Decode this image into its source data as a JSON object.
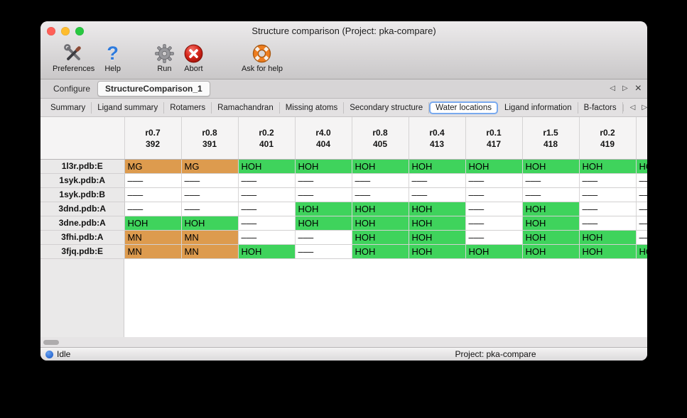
{
  "window": {
    "title": "Structure comparison (Project: pka-compare)"
  },
  "toolbar": {
    "items": [
      {
        "label": "Preferences",
        "icon": "tools-icon"
      },
      {
        "label": "Help",
        "icon": "question-icon",
        "glyph": "?"
      },
      {
        "label": "Run",
        "icon": "gear-icon"
      },
      {
        "label": "Abort",
        "icon": "abort-icon"
      },
      {
        "label": "Ask for help",
        "icon": "lifering-icon"
      }
    ]
  },
  "tabs": {
    "items": [
      {
        "label": "Configure",
        "active": false
      },
      {
        "label": "StructureComparison_1",
        "active": true
      }
    ],
    "nav": {
      "prev": "◁",
      "next": "▷",
      "close": "×"
    }
  },
  "subtabs": {
    "items": [
      "Summary",
      "Ligand summary",
      "Rotamers",
      "Ramachandran",
      "Missing atoms",
      "Secondary structure",
      "Water locations",
      "Ligand information",
      "B-factors"
    ],
    "selected": "Water locations",
    "nav": {
      "prev": "◁",
      "next": "▷"
    }
  },
  "table": {
    "columns": [
      {
        "line1": "r0.7",
        "line2": "392"
      },
      {
        "line1": "r0.8",
        "line2": "391"
      },
      {
        "line1": "r0.2",
        "line2": "401"
      },
      {
        "line1": "r4.0",
        "line2": "404"
      },
      {
        "line1": "r0.8",
        "line2": "405"
      },
      {
        "line1": "r0.4",
        "line2": "413"
      },
      {
        "line1": "r0.1",
        "line2": "417"
      },
      {
        "line1": "r1.5",
        "line2": "418"
      },
      {
        "line1": "r0.2",
        "line2": "419"
      }
    ],
    "rows": [
      {
        "label": "1l3r.pdb:E",
        "cells": [
          {
            "text": "MG",
            "type": "metal"
          },
          {
            "text": "MG",
            "type": "metal"
          },
          {
            "text": "HOH",
            "type": "water"
          },
          {
            "text": "HOH",
            "type": "water"
          },
          {
            "text": "HOH",
            "type": "water"
          },
          {
            "text": "HOH",
            "type": "water"
          },
          {
            "text": "HOH",
            "type": "water"
          },
          {
            "text": "HOH",
            "type": "water"
          },
          {
            "text": "HOH",
            "type": "water"
          }
        ],
        "partial": {
          "text": "HOH",
          "type": "water"
        }
      },
      {
        "label": "1syk.pdb:A",
        "cells": [
          {
            "text": "–––",
            "type": "none"
          },
          {
            "text": "–––",
            "type": "none"
          },
          {
            "text": "–––",
            "type": "none"
          },
          {
            "text": "–––",
            "type": "none"
          },
          {
            "text": "–––",
            "type": "none"
          },
          {
            "text": "–––",
            "type": "none"
          },
          {
            "text": "–––",
            "type": "none"
          },
          {
            "text": "–––",
            "type": "none"
          },
          {
            "text": "–––",
            "type": "none"
          }
        ],
        "partial": {
          "text": "–––",
          "type": "none"
        }
      },
      {
        "label": "1syk.pdb:B",
        "cells": [
          {
            "text": "–––",
            "type": "none"
          },
          {
            "text": "–––",
            "type": "none"
          },
          {
            "text": "–––",
            "type": "none"
          },
          {
            "text": "–––",
            "type": "none"
          },
          {
            "text": "–––",
            "type": "none"
          },
          {
            "text": "–––",
            "type": "none"
          },
          {
            "text": "–––",
            "type": "none"
          },
          {
            "text": "–––",
            "type": "none"
          },
          {
            "text": "–––",
            "type": "none"
          }
        ],
        "partial": {
          "text": "–––",
          "type": "none"
        }
      },
      {
        "label": "3dnd.pdb:A",
        "cells": [
          {
            "text": "–––",
            "type": "none"
          },
          {
            "text": "–––",
            "type": "none"
          },
          {
            "text": "–––",
            "type": "none"
          },
          {
            "text": "HOH",
            "type": "water"
          },
          {
            "text": "HOH",
            "type": "water"
          },
          {
            "text": "HOH",
            "type": "water"
          },
          {
            "text": "–––",
            "type": "none"
          },
          {
            "text": "HOH",
            "type": "water"
          },
          {
            "text": "–––",
            "type": "none"
          }
        ],
        "partial": {
          "text": "–––",
          "type": "none"
        }
      },
      {
        "label": "3dne.pdb:A",
        "cells": [
          {
            "text": "HOH",
            "type": "water"
          },
          {
            "text": "HOH",
            "type": "water"
          },
          {
            "text": "–––",
            "type": "none"
          },
          {
            "text": "HOH",
            "type": "water"
          },
          {
            "text": "HOH",
            "type": "water"
          },
          {
            "text": "HOH",
            "type": "water"
          },
          {
            "text": "–––",
            "type": "none"
          },
          {
            "text": "HOH",
            "type": "water"
          },
          {
            "text": "–––",
            "type": "none"
          }
        ],
        "partial": {
          "text": "–––",
          "type": "none"
        }
      },
      {
        "label": "3fhi.pdb:A",
        "cells": [
          {
            "text": "MN",
            "type": "metal"
          },
          {
            "text": "MN",
            "type": "metal"
          },
          {
            "text": "–––",
            "type": "none"
          },
          {
            "text": "–––",
            "type": "none"
          },
          {
            "text": "HOH",
            "type": "water"
          },
          {
            "text": "HOH",
            "type": "water"
          },
          {
            "text": "–––",
            "type": "none"
          },
          {
            "text": "HOH",
            "type": "water"
          },
          {
            "text": "HOH",
            "type": "water"
          }
        ],
        "partial": {
          "text": "–––",
          "type": "none"
        }
      },
      {
        "label": "3fjq.pdb:E",
        "cells": [
          {
            "text": "MN",
            "type": "metal"
          },
          {
            "text": "MN",
            "type": "metal"
          },
          {
            "text": "HOH",
            "type": "water"
          },
          {
            "text": "–––",
            "type": "none"
          },
          {
            "text": "HOH",
            "type": "water"
          },
          {
            "text": "HOH",
            "type": "water"
          },
          {
            "text": "HOH",
            "type": "water"
          },
          {
            "text": "HOH",
            "type": "water"
          },
          {
            "text": "HOH",
            "type": "water"
          }
        ],
        "partial": {
          "text": "HOH",
          "type": "water"
        }
      }
    ]
  },
  "colors": {
    "water": "#3fd35c",
    "metal": "#dd9b4e",
    "selection_blue": "#79a9ee",
    "traffic_red": "#ff5f57",
    "traffic_yellow": "#febc2e",
    "traffic_green": "#28c840"
  },
  "statusbar": {
    "status": "Idle",
    "project": "Project: pka-compare"
  }
}
